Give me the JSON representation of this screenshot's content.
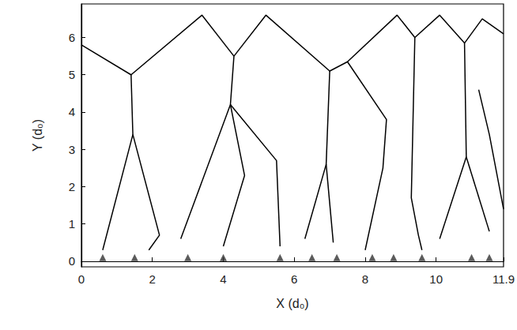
{
  "chart_data": {
    "type": "line",
    "xlabel": "X (d₀)",
    "ylabel": "Y (d₀)",
    "xlim": [
      0,
      11.9
    ],
    "ylim": [
      -0.15,
      6.9
    ],
    "xticks": [
      0,
      2,
      4,
      6,
      8,
      10
    ],
    "yticks": [
      0,
      1,
      2,
      3,
      4,
      5,
      6
    ],
    "grid": false,
    "series": [
      {
        "type": "line",
        "color": "#000000",
        "line_style": "solid",
        "x": [
          0,
          1.4,
          3.4,
          4.3,
          5.2,
          7.0,
          7.5,
          8.9,
          9.4,
          10.1,
          10.8,
          11.3,
          11.9
        ],
        "values": [
          5.8,
          5.0,
          6.6,
          5.5,
          6.6,
          5.1,
          5.35,
          6.6,
          6.0,
          6.6,
          5.85,
          6.5,
          6.1
        ]
      },
      {
        "type": "line",
        "color": "#000000",
        "line_style": "solid",
        "x": [
          1.4,
          1.45,
          0.6,
          null,
          1.45,
          2.2,
          1.9,
          null,
          4.3,
          4.2,
          2.8,
          null,
          4.2,
          5.5,
          5.6,
          null,
          4.2,
          4.6,
          4.0,
          null,
          7.0,
          6.9,
          6.3,
          null,
          6.9,
          7.1,
          null,
          7.5,
          8.6,
          8.5,
          8.0,
          null,
          9.4,
          9.3,
          9.5,
          9.6,
          null,
          10.8,
          10.85,
          10.1,
          null,
          10.85,
          11.5,
          null,
          11.9,
          11.5,
          11.2
        ],
        "values": [
          5.0,
          3.4,
          0.3,
          null,
          3.4,
          0.7,
          0.3,
          null,
          5.5,
          4.2,
          0.6,
          null,
          4.2,
          2.7,
          0.4,
          null,
          4.2,
          2.3,
          0.4,
          null,
          5.1,
          2.6,
          0.6,
          null,
          2.6,
          0.5,
          null,
          5.35,
          3.8,
          2.5,
          0.3,
          null,
          6.0,
          1.7,
          0.7,
          0.3,
          null,
          5.85,
          2.8,
          0.6,
          null,
          2.8,
          0.8,
          null,
          1.4,
          3.4,
          4.6
        ]
      },
      {
        "type": "scatter",
        "color": "#333333",
        "marker": "triangle",
        "x": [
          0.6,
          1.5,
          3.0,
          4.0,
          5.6,
          6.5,
          7.2,
          8.2,
          8.8,
          9.6,
          11.0,
          11.5
        ],
        "values": [
          0.1,
          0.1,
          0.1,
          0.1,
          0.1,
          0.1,
          0.1,
          0.1,
          0.1,
          0.1,
          0.1,
          0.1
        ]
      }
    ]
  }
}
